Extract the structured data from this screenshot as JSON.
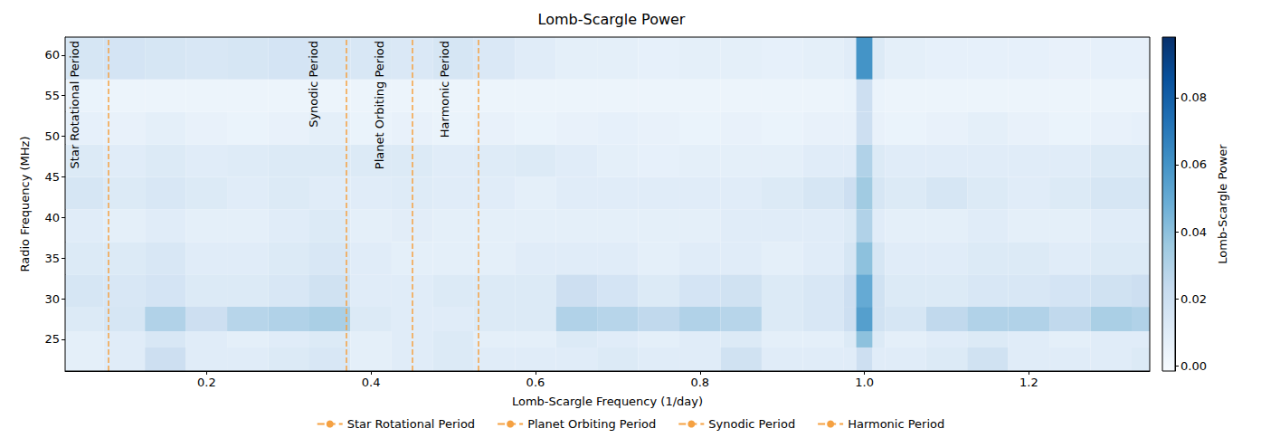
{
  "chart_data": {
    "type": "heatmap",
    "title": "Lomb-Scargle Power",
    "x_label": "Lomb-Scargle Frequency (1/day)",
    "y_label": "Radio Frequency (MHz)",
    "xlim": [
      0.028,
      1.347
    ],
    "xticks": [
      0.2,
      0.4,
      0.6,
      0.8,
      {
        "value": 1,
        "label": "1.0"
      },
      1.2
    ],
    "ylim": [
      21.1,
      62.2
    ],
    "yticks": [
      25,
      30,
      35,
      40,
      45,
      50,
      55,
      60
    ],
    "grid": false,
    "legend": "bottom",
    "x_edges": [
      0.025,
      0.075,
      0.125,
      0.175,
      0.225,
      0.275,
      0.325,
      0.375,
      0.425,
      0.475,
      0.525,
      0.575,
      0.625,
      0.675,
      0.725,
      0.775,
      0.825,
      0.875,
      0.925,
      0.975,
      0.99,
      1.01,
      1.025,
      1.075,
      1.125,
      1.175,
      1.225,
      1.275,
      1.325,
      1.375
    ],
    "y_edges": [
      21,
      24,
      26,
      29,
      33,
      37,
      41,
      45,
      49,
      53,
      57,
      63
    ],
    "cells": [
      [
        0.008,
        0.01,
        0.02,
        0.01,
        0.01,
        0.012,
        0.014,
        0.008,
        0.01,
        0.012,
        0.01,
        0.01,
        0.01,
        0.012,
        0.01,
        0.01,
        0.018,
        0.01,
        0.01,
        0.01,
        0.02,
        0.01,
        0.01,
        0.012,
        0.018,
        0.01,
        0.01,
        0.01,
        0.012
      ],
      [
        0.008,
        0.01,
        0.014,
        0.01,
        0.008,
        0.01,
        0.012,
        0.008,
        0.01,
        0.012,
        0.008,
        0.008,
        0.012,
        0.01,
        0.008,
        0.01,
        0.012,
        0.008,
        0.008,
        0.012,
        0.04,
        0.012,
        0.008,
        0.01,
        0.012,
        0.01,
        0.008,
        0.01,
        0.01
      ],
      [
        0.012,
        0.015,
        0.03,
        0.02,
        0.028,
        0.03,
        0.032,
        0.012,
        0.01,
        0.01,
        0.012,
        0.012,
        0.03,
        0.028,
        0.025,
        0.03,
        0.028,
        0.012,
        0.014,
        0.02,
        0.055,
        0.018,
        0.015,
        0.025,
        0.03,
        0.03,
        0.025,
        0.032,
        0.03
      ],
      [
        0.015,
        0.014,
        0.016,
        0.012,
        0.012,
        0.014,
        0.018,
        0.01,
        0.01,
        0.012,
        0.012,
        0.012,
        0.02,
        0.016,
        0.012,
        0.016,
        0.018,
        0.012,
        0.014,
        0.02,
        0.05,
        0.018,
        0.012,
        0.012,
        0.014,
        0.014,
        0.016,
        0.018,
        0.02
      ],
      [
        0.012,
        0.012,
        0.014,
        0.01,
        0.01,
        0.012,
        0.014,
        0.01,
        0.008,
        0.008,
        0.008,
        0.01,
        0.01,
        0.01,
        0.008,
        0.01,
        0.01,
        0.008,
        0.01,
        0.015,
        0.04,
        0.015,
        0.01,
        0.01,
        0.012,
        0.012,
        0.01,
        0.012,
        0.012
      ],
      [
        0.01,
        0.008,
        0.01,
        0.008,
        0.008,
        0.01,
        0.012,
        0.008,
        0.009,
        0.008,
        0.008,
        0.008,
        0.008,
        0.008,
        0.008,
        0.008,
        0.01,
        0.01,
        0.01,
        0.012,
        0.03,
        0.01,
        0.008,
        0.008,
        0.01,
        0.008,
        0.008,
        0.01,
        0.01
      ],
      [
        0.015,
        0.012,
        0.014,
        0.012,
        0.01,
        0.012,
        0.01,
        0.01,
        0.011,
        0.01,
        0.01,
        0.008,
        0.01,
        0.01,
        0.01,
        0.01,
        0.01,
        0.012,
        0.015,
        0.02,
        0.035,
        0.015,
        0.012,
        0.015,
        0.012,
        0.01,
        0.012,
        0.015,
        0.015
      ],
      [
        0.012,
        0.01,
        0.012,
        0.01,
        0.011,
        0.012,
        0.012,
        0.012,
        0.012,
        0.01,
        0.011,
        0.012,
        0.01,
        0.008,
        0.007,
        0.008,
        0.008,
        0.008,
        0.01,
        0.01,
        0.03,
        0.012,
        0.01,
        0.01,
        0.01,
        0.01,
        0.01,
        0.012,
        0.012
      ],
      [
        0.007,
        0.006,
        0.008,
        0.006,
        0.005,
        0.006,
        0.008,
        0.005,
        0.006,
        0.005,
        0.006,
        0.005,
        0.006,
        0.007,
        0.006,
        0.005,
        0.006,
        0.005,
        0.006,
        0.006,
        0.02,
        0.006,
        0.005,
        0.006,
        0.008,
        0.006,
        0.005,
        0.006,
        0.007
      ],
      [
        0.005,
        0.004,
        0.004,
        0.004,
        0.004,
        0.004,
        0.004,
        0.004,
        0.004,
        0.004,
        0.004,
        0.004,
        0.004,
        0.004,
        0.004,
        0.004,
        0.004,
        0.004,
        0.004,
        0.005,
        0.02,
        0.005,
        0.004,
        0.004,
        0.004,
        0.004,
        0.004,
        0.004,
        0.004
      ],
      [
        0.015,
        0.016,
        0.015,
        0.014,
        0.015,
        0.016,
        0.015,
        0.014,
        0.013,
        0.015,
        0.013,
        0.01,
        0.008,
        0.008,
        0.007,
        0.008,
        0.008,
        0.007,
        0.008,
        0.01,
        0.06,
        0.012,
        0.008,
        0.007,
        0.007,
        0.007,
        0.006,
        0.007,
        0.007
      ]
    ],
    "colorbar": {
      "label": "Lomb-Scargle Power",
      "range": [
        -0.0015,
        0.098
      ],
      "ticks": [
        {
          "value": 0,
          "label": "0.00"
        },
        {
          "value": 0.02,
          "label": "0.02"
        },
        {
          "value": 0.04,
          "label": "0.04"
        },
        {
          "value": 0.06,
          "label": "0.06"
        },
        {
          "value": 0.08,
          "label": "0.08"
        }
      ]
    },
    "series": [
      {
        "name": "Star Rotational Period",
        "type": "vline",
        "x": 0.083,
        "color": "#f5a142",
        "line_style": "dashed"
      },
      {
        "name": "Planet Orbiting Period",
        "type": "vline",
        "x": 0.45,
        "color": "#f5a142",
        "line_style": "dashed"
      },
      {
        "name": "Synodic Period",
        "type": "vline",
        "x": 0.367,
        "color": "#f5a142",
        "line_style": "dashed"
      },
      {
        "name": "Harmonic Period",
        "type": "vline",
        "x": 0.533,
        "color": "#f5a142",
        "line_style": "dashed"
      }
    ]
  }
}
